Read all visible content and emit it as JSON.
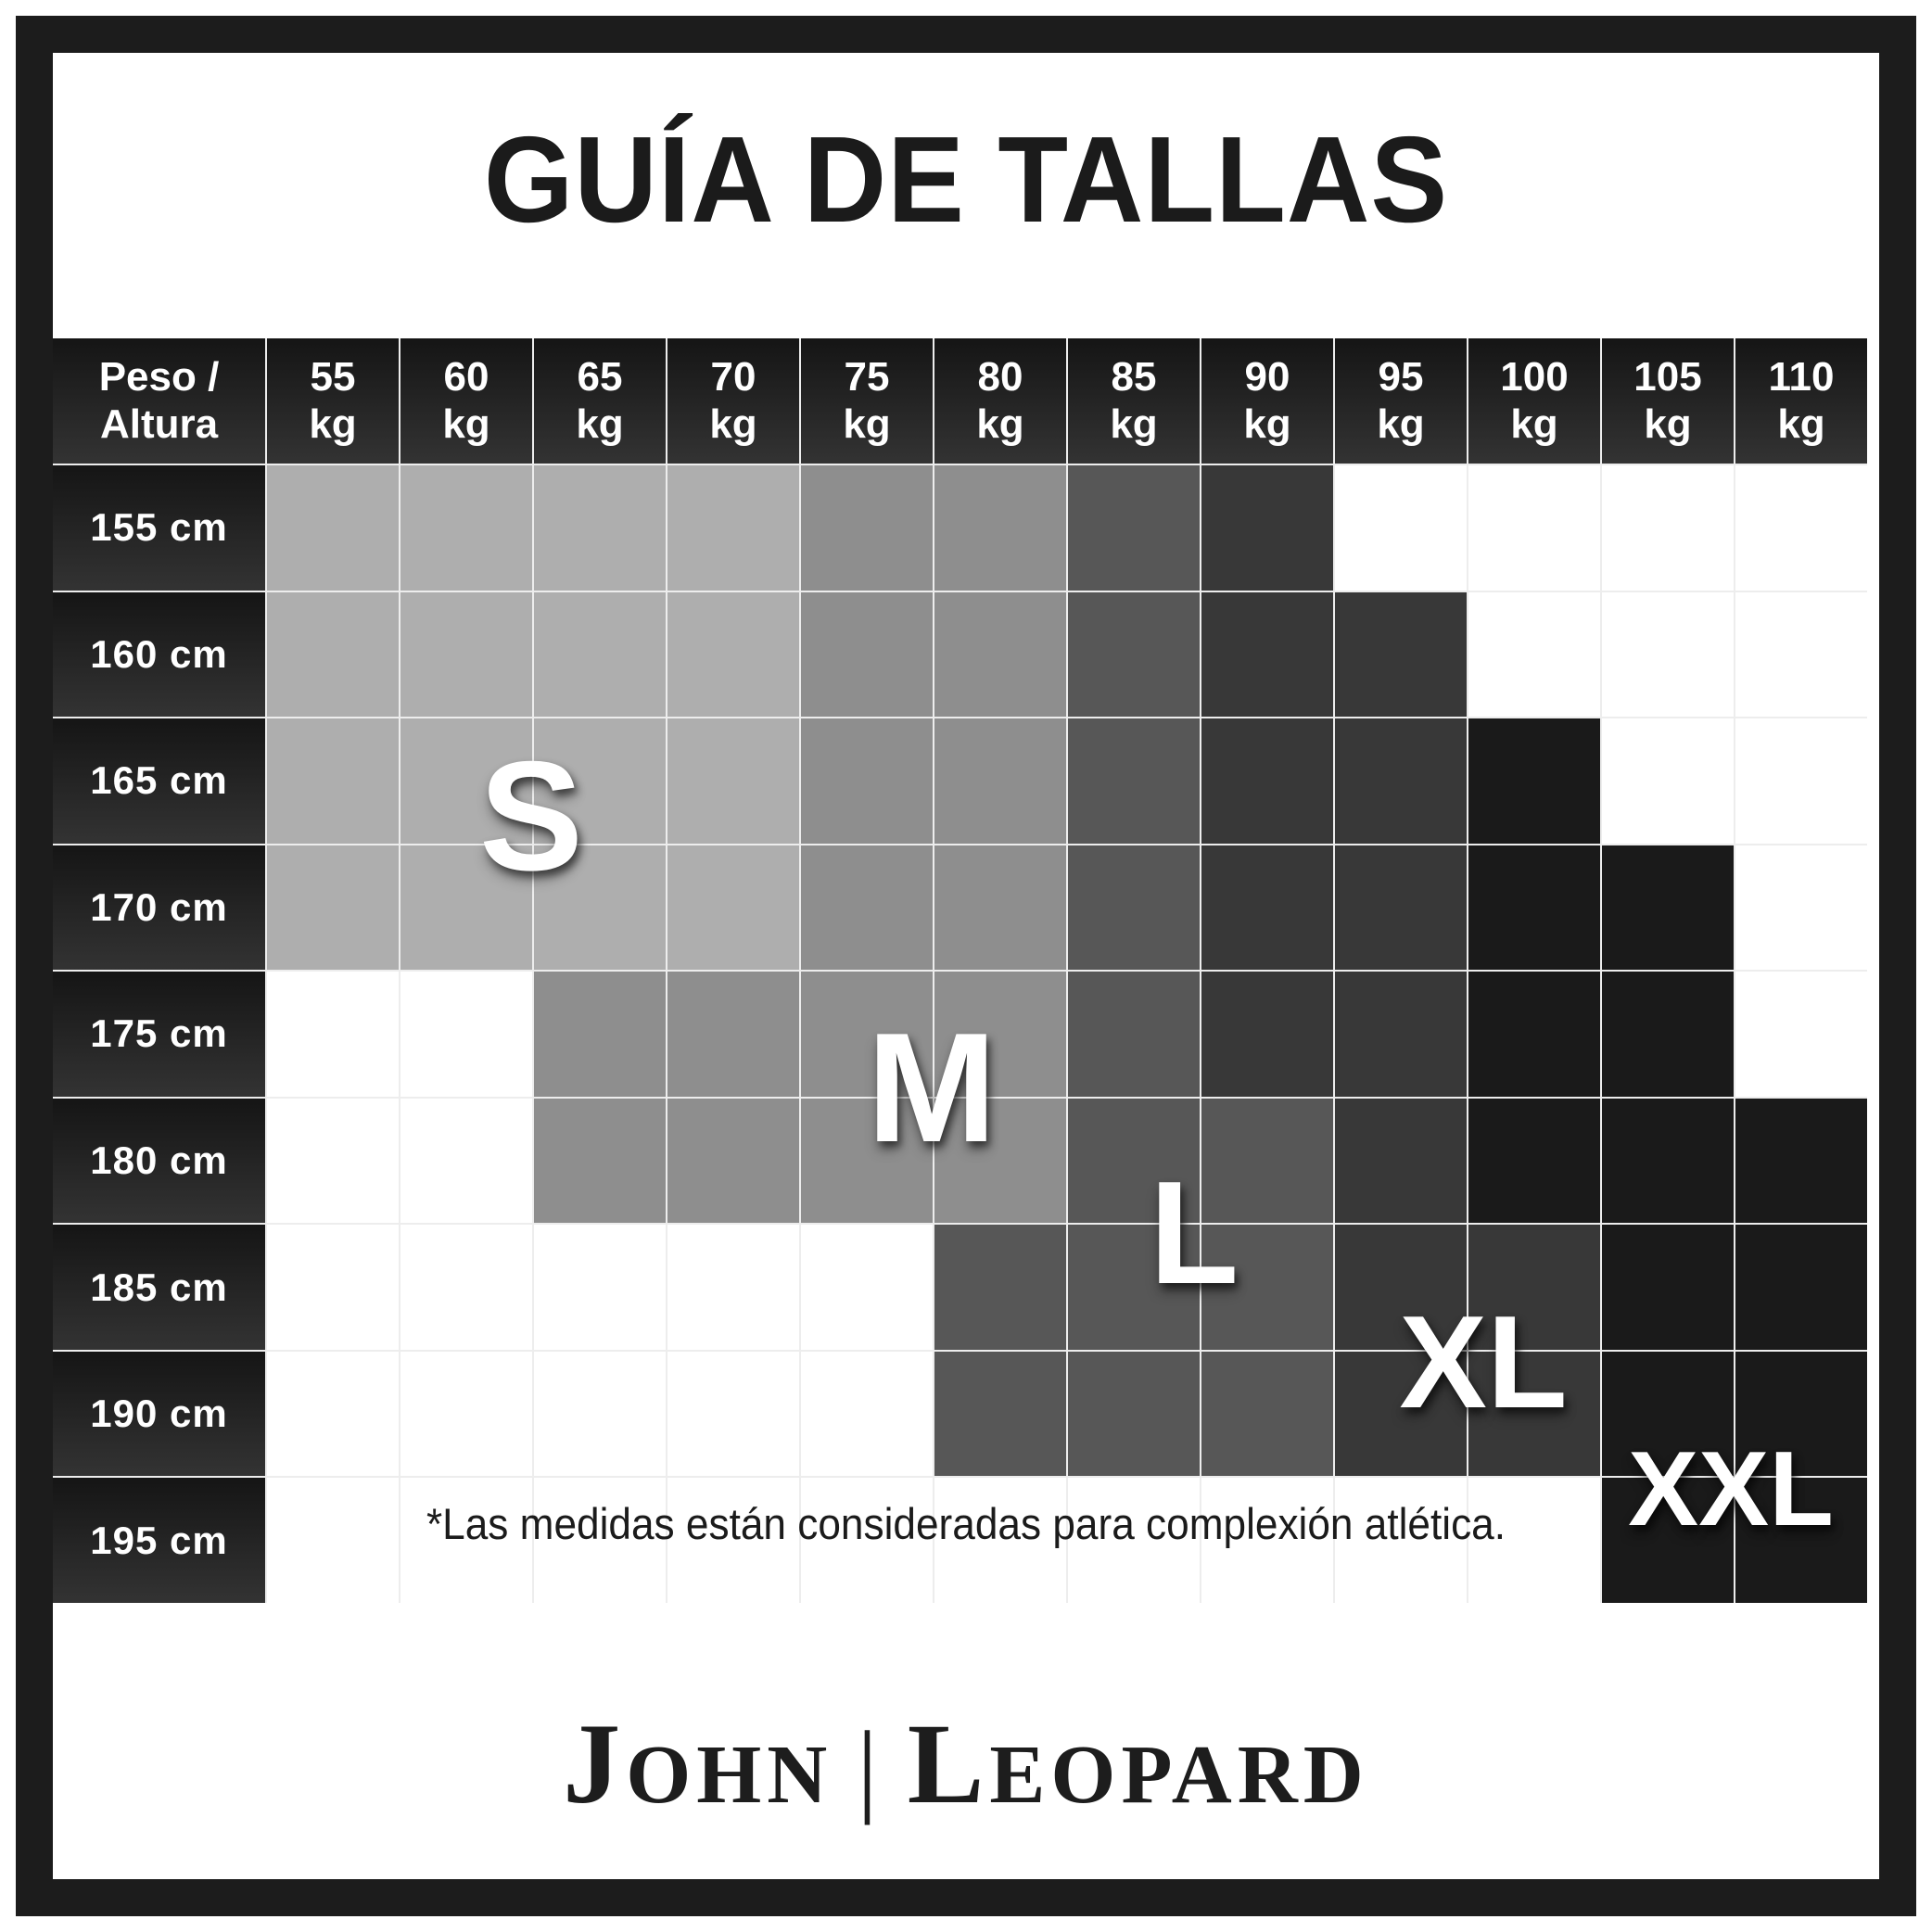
{
  "title": "GUÍA DE TALLAS",
  "footnote": "*Las medidas están consideradas para complexión atlética.",
  "brand": {
    "first_initial": "J",
    "first_rest": "ohn",
    "separator": "|",
    "second_initial": "L",
    "second_rest": "eopard"
  },
  "table": {
    "corner_lines": [
      "Peso /",
      "Altura"
    ],
    "unit": "kg",
    "weights": [
      "55",
      "60",
      "65",
      "70",
      "75",
      "80",
      "85",
      "90",
      "95",
      "100",
      "105",
      "110"
    ],
    "heights": [
      "155 cm",
      "160 cm",
      "165 cm",
      "170 cm",
      "175 cm",
      "180 cm",
      "185 cm",
      "190 cm",
      "195 cm"
    ]
  },
  "overlay_labels": {
    "s": "S",
    "m": "M",
    "l": "L",
    "xl": "XL",
    "xxl": "XXL"
  },
  "colors": {
    "S": "#aeaeae",
    "M": "#8e8e8e",
    "L": "#575757",
    "XL": "#383838",
    "XXL": "#1a1a1a",
    "empty": "#ffffff",
    "header_top": "#151515",
    "header_bottom": "#333333",
    "text_dark": "#1b1b1b",
    "text_light": "#ffffff"
  },
  "chart_data": {
    "type": "heatmap",
    "title": "GUÍA DE TALLAS",
    "x_unit": "kg",
    "x": [
      55,
      60,
      65,
      70,
      75,
      80,
      85,
      90,
      95,
      100,
      105,
      110
    ],
    "y_unit": "cm",
    "y": [
      155,
      160,
      165,
      170,
      175,
      180,
      185,
      190,
      195
    ],
    "legend": [
      "S",
      "M",
      "L",
      "XL",
      "XXL"
    ],
    "note": "*Las medidas están consideradas para complexión atlética.",
    "values": [
      [
        "S",
        "S",
        "S",
        "S",
        "M",
        "M",
        "L",
        "XL",
        "",
        "",
        "",
        ""
      ],
      [
        "S",
        "S",
        "S",
        "S",
        "M",
        "M",
        "L",
        "XL",
        "XL",
        "",
        "",
        ""
      ],
      [
        "S",
        "S",
        "S",
        "S",
        "M",
        "M",
        "L",
        "XL",
        "XL",
        "XXL",
        "",
        ""
      ],
      [
        "S",
        "S",
        "S",
        "S",
        "M",
        "M",
        "L",
        "XL",
        "XL",
        "XXL",
        "XXL",
        ""
      ],
      [
        "",
        "",
        "M",
        "M",
        "M",
        "M",
        "L",
        "XL",
        "XL",
        "XXL",
        "XXL",
        ""
      ],
      [
        "",
        "",
        "M",
        "M",
        "M",
        "M",
        "L",
        "L",
        "XL",
        "XXL",
        "XXL",
        "XXL"
      ],
      [
        "",
        "",
        "",
        "",
        "",
        "L",
        "L",
        "L",
        "XL",
        "XL",
        "XXL",
        "XXL"
      ],
      [
        "",
        "",
        "",
        "",
        "",
        "L",
        "L",
        "L",
        "XL",
        "XL",
        "XXL",
        "XXL"
      ],
      [
        "",
        "",
        "",
        "",
        "",
        "",
        "",
        "",
        "",
        "",
        "XXL",
        "XXL"
      ]
    ]
  }
}
